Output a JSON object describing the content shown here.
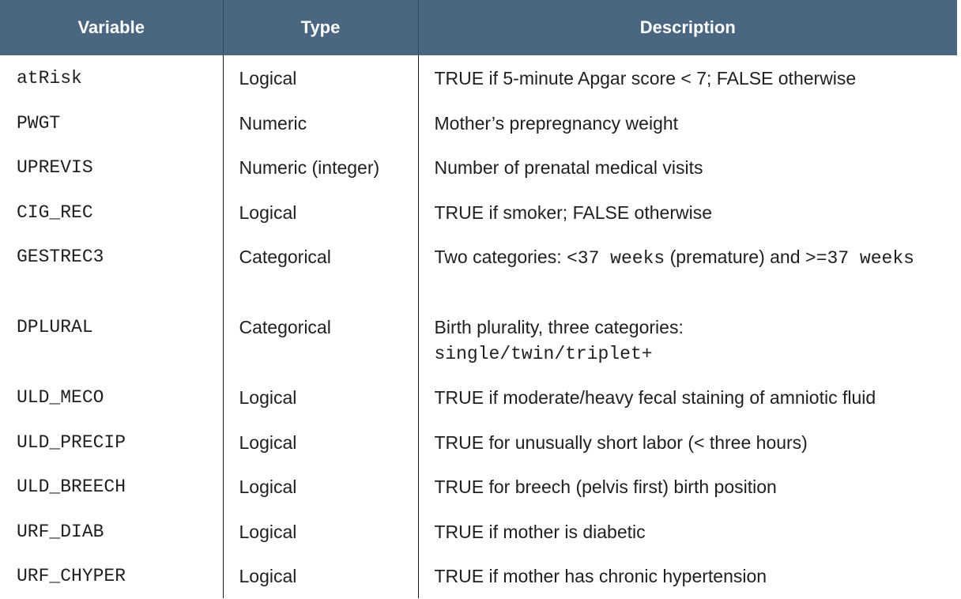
{
  "headers": {
    "variable": "Variable",
    "type": "Type",
    "description": "Description"
  },
  "rows": [
    {
      "variable": "atRisk",
      "type": "Logical",
      "description": "TRUE if 5-minute Apgar score < 7; FALSE otherwise"
    },
    {
      "variable": "PWGT",
      "type": "Numeric",
      "description": "Mother’s prepregnancy weight"
    },
    {
      "variable": "UPREVIS",
      "type": "Numeric (integer)",
      "description": "Number of prenatal medical visits"
    },
    {
      "variable": "CIG_REC",
      "type": "Logical",
      "description": "TRUE if smoker; FALSE otherwise"
    },
    {
      "variable": "GESTREC3",
      "type": "Categorical",
      "desc_parts": {
        "prefix": "Two categories: ",
        "code1": "<37 weeks",
        "middle": " (premature) and ",
        "code2": ">=37 weeks"
      }
    },
    {
      "variable": "DPLURAL",
      "type": "Categorical",
      "desc_parts": {
        "prefix": "Birth plurality, three categories: ",
        "code1": "single/twin/triplet+"
      }
    },
    {
      "variable": "ULD_MECO",
      "type": "Logical",
      "description": "TRUE if moderate/heavy fecal staining of amniotic fluid"
    },
    {
      "variable": "ULD_PRECIP",
      "type": "Logical",
      "description": "TRUE for unusually short labor (< three hours)"
    },
    {
      "variable": "ULD_BREECH",
      "type": "Logical",
      "description": "TRUE for breech (pelvis first) birth position"
    },
    {
      "variable": "URF_DIAB",
      "type": "Logical",
      "description": "TRUE if mother is diabetic"
    },
    {
      "variable": "URF_CHYPER",
      "type": "Logical",
      "description": "TRUE if mother has chronic hypertension"
    }
  ]
}
